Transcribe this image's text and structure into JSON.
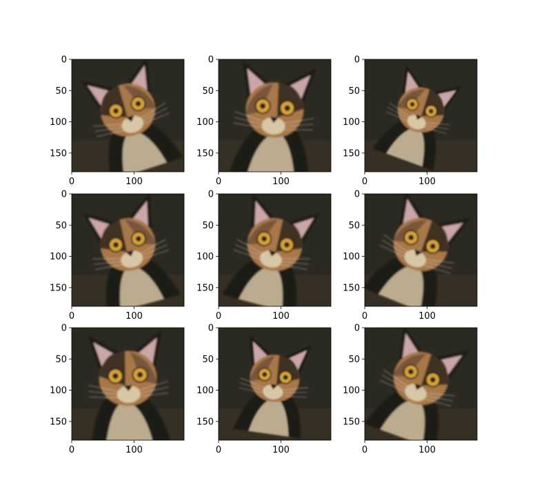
{
  "chart_data": {
    "type": "image_grid",
    "rows": 3,
    "cols": 3,
    "image_size": [
      180,
      180
    ],
    "xlim": [
      0,
      180
    ],
    "ylim": [
      180,
      0
    ],
    "xticks": [
      0,
      100
    ],
    "yticks": [
      0,
      50,
      100,
      150
    ],
    "grid": false,
    "panels": [
      {
        "content": "cat-photo",
        "tilt_deg": -18,
        "flip": false,
        "zoom": 1.0,
        "shift": [
          0,
          0
        ]
      },
      {
        "content": "cat-photo",
        "tilt_deg": 5,
        "flip": true,
        "zoom": 1.05,
        "shift": [
          0,
          0
        ]
      },
      {
        "content": "cat-photo",
        "tilt_deg": 20,
        "flip": true,
        "zoom": 0.85,
        "shift": [
          0,
          0
        ]
      },
      {
        "content": "cat-photo",
        "tilt_deg": -15,
        "flip": false,
        "zoom": 1.0,
        "shift": [
          0,
          0
        ]
      },
      {
        "content": "cat-photo",
        "tilt_deg": 15,
        "flip": true,
        "zoom": 1.0,
        "shift": [
          0,
          0
        ]
      },
      {
        "content": "cat-photo",
        "tilt_deg": 22,
        "flip": true,
        "zoom": 1.0,
        "shift": [
          0,
          0
        ]
      },
      {
        "content": "cat-photo",
        "tilt_deg": -3,
        "flip": false,
        "zoom": 1.05,
        "shift": [
          0,
          0
        ]
      },
      {
        "content": "cat-photo",
        "tilt_deg": 8,
        "flip": true,
        "zoom": 0.9,
        "shift": [
          0,
          0
        ]
      },
      {
        "content": "cat-photo",
        "tilt_deg": 20,
        "flip": true,
        "zoom": 1.0,
        "shift": [
          0,
          0
        ]
      }
    ],
    "colors": {
      "background": "#2b2a22",
      "fur_dark": "#1c1a16",
      "fur_orange": "#a9784a",
      "fur_cream": "#d8c7a4",
      "ear_inner": "#caa6a6",
      "eye": "#d9a63a"
    }
  }
}
